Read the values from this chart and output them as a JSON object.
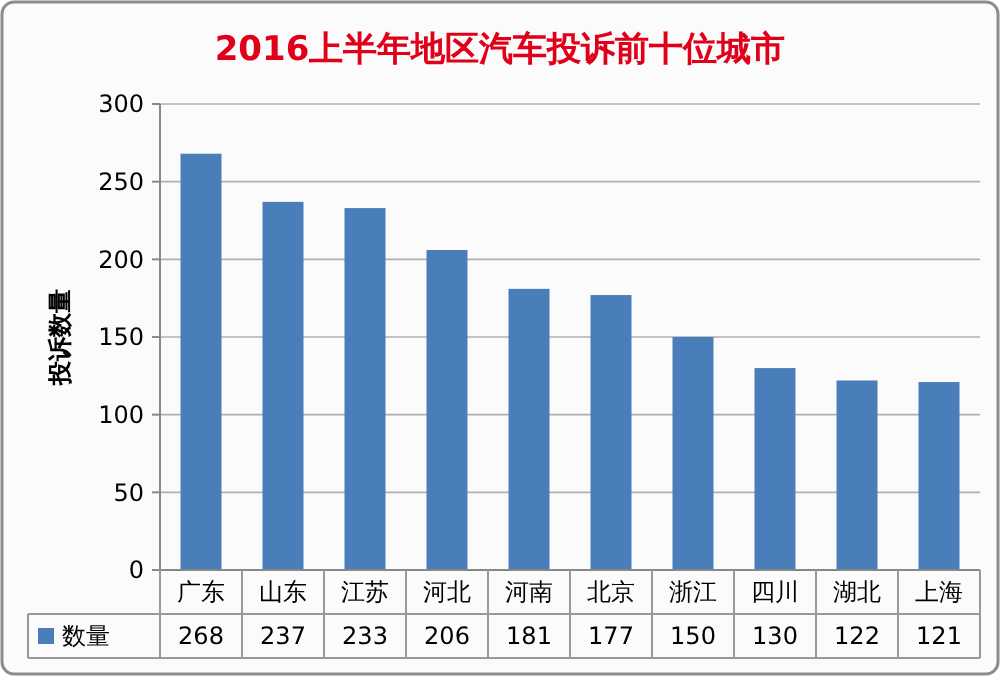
{
  "chart_data": {
    "type": "bar",
    "title": "2016上半年地区汽车投诉前十位城市",
    "ylabel": "投诉数量",
    "categories": [
      "广东",
      "山东",
      "江苏",
      "河北",
      "河南",
      "北京",
      "浙江",
      "四川",
      "湖北",
      "上海"
    ],
    "series": [
      {
        "name": "数量",
        "color": "#4a7ebb",
        "values": [
          268,
          237,
          233,
          206,
          181,
          177,
          150,
          130,
          122,
          121
        ]
      }
    ],
    "ylim": [
      0,
      300
    ],
    "yticks": [
      0,
      50,
      100,
      150,
      200,
      250,
      300
    ],
    "grid": "y",
    "legend": "bottom",
    "data_labels": true
  }
}
